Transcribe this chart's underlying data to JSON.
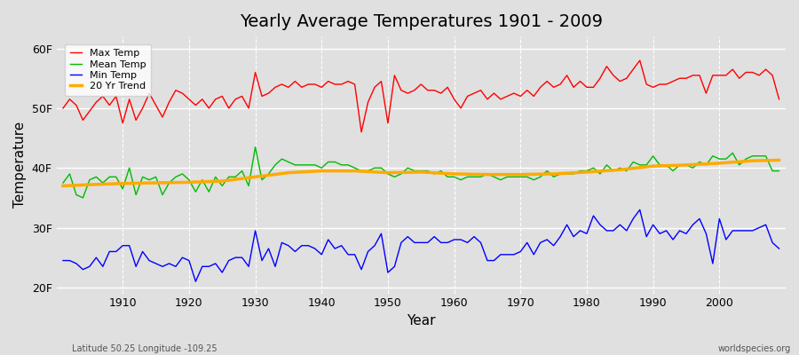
{
  "title": "Yearly Average Temperatures 1901 - 2009",
  "xlabel": "Year",
  "ylabel": "Temperature",
  "footnote_left": "Latitude 50.25 Longitude -109.25",
  "footnote_right": "worldspecies.org",
  "years": [
    1901,
    1902,
    1903,
    1904,
    1905,
    1906,
    1907,
    1908,
    1909,
    1910,
    1911,
    1912,
    1913,
    1914,
    1915,
    1916,
    1917,
    1918,
    1919,
    1920,
    1921,
    1922,
    1923,
    1924,
    1925,
    1926,
    1927,
    1928,
    1929,
    1930,
    1931,
    1932,
    1933,
    1934,
    1935,
    1936,
    1937,
    1938,
    1939,
    1940,
    1941,
    1942,
    1943,
    1944,
    1945,
    1946,
    1947,
    1948,
    1949,
    1950,
    1951,
    1952,
    1953,
    1954,
    1955,
    1956,
    1957,
    1958,
    1959,
    1960,
    1961,
    1962,
    1963,
    1964,
    1965,
    1966,
    1967,
    1968,
    1969,
    1970,
    1971,
    1972,
    1973,
    1974,
    1975,
    1976,
    1977,
    1978,
    1979,
    1980,
    1981,
    1982,
    1983,
    1984,
    1985,
    1986,
    1987,
    1988,
    1989,
    1990,
    1991,
    1992,
    1993,
    1994,
    1995,
    1996,
    1997,
    1998,
    1999,
    2000,
    2001,
    2002,
    2003,
    2004,
    2005,
    2006,
    2007,
    2008,
    2009
  ],
  "max_temp": [
    50.0,
    51.5,
    50.5,
    48.0,
    49.5,
    51.0,
    52.0,
    50.5,
    52.0,
    47.5,
    51.5,
    48.0,
    50.0,
    52.5,
    50.5,
    48.5,
    51.0,
    53.0,
    52.5,
    51.5,
    50.5,
    51.5,
    50.0,
    51.5,
    52.0,
    50.0,
    51.5,
    52.0,
    50.0,
    56.0,
    52.0,
    52.5,
    53.5,
    54.0,
    53.5,
    54.5,
    53.5,
    54.0,
    54.0,
    53.5,
    54.5,
    54.0,
    54.0,
    54.5,
    54.0,
    46.0,
    51.0,
    53.5,
    54.5,
    47.5,
    55.5,
    53.0,
    52.5,
    53.0,
    54.0,
    53.0,
    53.0,
    52.5,
    53.5,
    51.5,
    50.0,
    52.0,
    52.5,
    53.0,
    51.5,
    52.5,
    51.5,
    52.0,
    52.5,
    52.0,
    53.0,
    52.0,
    53.5,
    54.5,
    53.5,
    54.0,
    55.5,
    53.5,
    54.5,
    53.5,
    53.5,
    55.0,
    57.0,
    55.5,
    54.5,
    55.0,
    56.5,
    58.0,
    54.0,
    53.5,
    54.0,
    54.0,
    54.5,
    55.0,
    55.0,
    55.5,
    55.5,
    52.5,
    55.5,
    55.5,
    55.5,
    56.5,
    55.0,
    56.0,
    56.0,
    55.5,
    56.5,
    55.5,
    51.5
  ],
  "mean_temp": [
    37.5,
    39.0,
    35.5,
    35.0,
    38.0,
    38.5,
    37.5,
    38.5,
    38.5,
    36.5,
    40.0,
    35.5,
    38.5,
    38.0,
    38.5,
    35.5,
    37.5,
    38.5,
    39.0,
    38.0,
    36.0,
    38.0,
    36.0,
    38.5,
    37.0,
    38.5,
    38.5,
    39.5,
    37.0,
    43.5,
    38.0,
    39.0,
    40.5,
    41.5,
    41.0,
    40.5,
    40.5,
    40.5,
    40.5,
    40.0,
    41.0,
    41.0,
    40.5,
    40.5,
    40.0,
    39.5,
    39.5,
    40.0,
    40.0,
    39.0,
    38.5,
    39.0,
    40.0,
    39.5,
    39.5,
    39.5,
    39.0,
    39.5,
    38.5,
    38.5,
    38.0,
    38.5,
    38.5,
    38.5,
    39.0,
    38.5,
    38.0,
    38.5,
    38.5,
    38.5,
    38.5,
    38.0,
    38.5,
    39.5,
    38.5,
    39.0,
    39.0,
    39.0,
    39.5,
    39.5,
    40.0,
    39.0,
    40.5,
    39.5,
    40.0,
    39.5,
    41.0,
    40.5,
    40.5,
    42.0,
    40.5,
    40.5,
    39.5,
    40.5,
    40.5,
    40.0,
    41.0,
    40.5,
    42.0,
    41.5,
    41.5,
    42.5,
    40.5,
    41.5,
    42.0,
    42.0,
    42.0,
    39.5,
    39.5
  ],
  "min_temp": [
    24.5,
    24.5,
    24.0,
    23.0,
    23.5,
    25.0,
    23.5,
    26.0,
    26.0,
    27.0,
    27.0,
    23.5,
    26.0,
    24.5,
    24.0,
    23.5,
    24.0,
    23.5,
    25.0,
    24.5,
    21.0,
    23.5,
    23.5,
    24.0,
    22.5,
    24.5,
    25.0,
    25.0,
    23.5,
    29.5,
    24.5,
    26.5,
    23.5,
    27.5,
    27.0,
    26.0,
    27.0,
    27.0,
    26.5,
    25.5,
    28.0,
    26.5,
    27.0,
    25.5,
    25.5,
    23.0,
    26.0,
    27.0,
    29.0,
    22.5,
    23.5,
    27.5,
    28.5,
    27.5,
    27.5,
    27.5,
    28.5,
    27.5,
    27.5,
    28.0,
    28.0,
    27.5,
    28.5,
    27.5,
    24.5,
    24.5,
    25.5,
    25.5,
    25.5,
    26.0,
    27.5,
    25.5,
    27.5,
    28.0,
    27.0,
    28.5,
    30.5,
    28.5,
    29.5,
    29.0,
    32.0,
    30.5,
    29.5,
    29.5,
    30.5,
    29.5,
    31.5,
    33.0,
    28.5,
    30.5,
    29.0,
    29.5,
    28.0,
    29.5,
    29.0,
    30.5,
    31.5,
    29.0,
    24.0,
    31.5,
    28.0,
    29.5,
    29.5,
    29.5,
    29.5,
    30.0,
    30.5,
    27.5,
    26.5
  ],
  "trend_years": [
    1901,
    1905,
    1910,
    1915,
    1920,
    1925,
    1930,
    1935,
    1940,
    1945,
    1950,
    1955,
    1960,
    1965,
    1970,
    1975,
    1980,
    1985,
    1990,
    1995,
    2000,
    2005,
    2009
  ],
  "trend_values": [
    37.0,
    37.2,
    37.4,
    37.5,
    37.6,
    37.8,
    38.5,
    39.2,
    39.5,
    39.5,
    39.2,
    39.3,
    39.0,
    38.9,
    38.9,
    39.0,
    39.3,
    39.7,
    40.3,
    40.5,
    40.8,
    41.2,
    41.3
  ],
  "max_color": "#ff0000",
  "mean_color": "#00bb00",
  "min_color": "#0000ff",
  "trend_color": "#ffaa00",
  "bg_color": "#e0e0e0",
  "grid_color": "#ffffff",
  "yticks": [
    20,
    30,
    40,
    50,
    60
  ],
  "ylim": [
    19,
    62
  ],
  "xlim": [
    1900,
    2010
  ],
  "xticks": [
    1910,
    1920,
    1930,
    1940,
    1950,
    1960,
    1970,
    1980,
    1990,
    2000
  ]
}
